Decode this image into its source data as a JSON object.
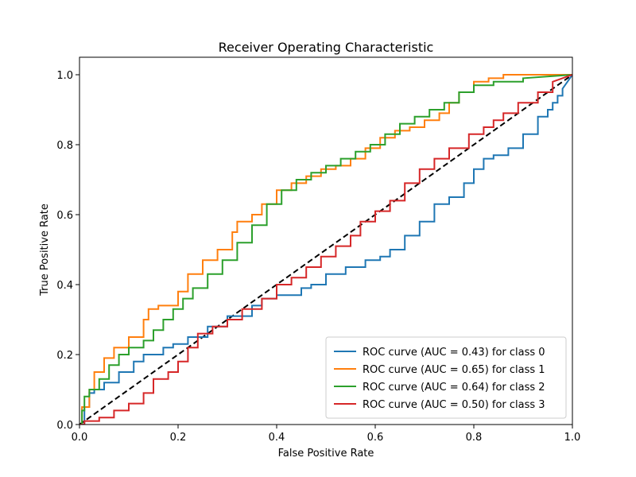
{
  "chart_data": {
    "type": "line",
    "title": "Receiver Operating Characteristic",
    "xlabel": "False Positive Rate",
    "ylabel": "True Positive Rate",
    "xlim": [
      0.0,
      1.0
    ],
    "ylim": [
      0.0,
      1.05
    ],
    "x_ticks": [
      "0.0",
      "0.2",
      "0.4",
      "0.6",
      "0.8",
      "1.0"
    ],
    "y_ticks": [
      "0.0",
      "0.2",
      "0.4",
      "0.6",
      "0.8",
      "1.0"
    ],
    "grid": false,
    "legend_position": "lower-right",
    "reference_line": {
      "style": "dashed",
      "color": "#000000",
      "x": [
        0,
        1
      ],
      "y": [
        0,
        1
      ]
    },
    "series": [
      {
        "name": "ROC curve (AUC = 0.43) for class 0",
        "color": "#1f77b4",
        "x": [
          0,
          0.01,
          0.01,
          0.02,
          0.02,
          0.03,
          0.03,
          0.05,
          0.05,
          0.08,
          0.08,
          0.11,
          0.11,
          0.13,
          0.13,
          0.17,
          0.17,
          0.19,
          0.19,
          0.22,
          0.22,
          0.26,
          0.26,
          0.3,
          0.3,
          0.35,
          0.35,
          0.37,
          0.37,
          0.4,
          0.4,
          0.45,
          0.45,
          0.47,
          0.47,
          0.5,
          0.5,
          0.54,
          0.54,
          0.58,
          0.58,
          0.61,
          0.61,
          0.63,
          0.63,
          0.66,
          0.66,
          0.69,
          0.69,
          0.72,
          0.72,
          0.75,
          0.75,
          0.78,
          0.78,
          0.8,
          0.8,
          0.82,
          0.82,
          0.84,
          0.84,
          0.87,
          0.87,
          0.9,
          0.9,
          0.93,
          0.93,
          0.95,
          0.95,
          0.96,
          0.96,
          0.97,
          0.97,
          0.98,
          0.98,
          0.99,
          1.0
        ],
        "y": [
          0,
          0,
          0.05,
          0.05,
          0.09,
          0.09,
          0.1,
          0.1,
          0.12,
          0.12,
          0.15,
          0.15,
          0.18,
          0.18,
          0.2,
          0.2,
          0.22,
          0.22,
          0.23,
          0.23,
          0.25,
          0.25,
          0.28,
          0.28,
          0.31,
          0.31,
          0.34,
          0.34,
          0.36,
          0.36,
          0.37,
          0.37,
          0.39,
          0.39,
          0.4,
          0.4,
          0.43,
          0.43,
          0.45,
          0.45,
          0.47,
          0.47,
          0.48,
          0.48,
          0.5,
          0.5,
          0.54,
          0.54,
          0.58,
          0.58,
          0.63,
          0.63,
          0.65,
          0.65,
          0.69,
          0.69,
          0.73,
          0.73,
          0.76,
          0.76,
          0.77,
          0.77,
          0.79,
          0.79,
          0.83,
          0.83,
          0.88,
          0.88,
          0.9,
          0.9,
          0.92,
          0.92,
          0.94,
          0.94,
          0.96,
          0.98,
          1.0
        ]
      },
      {
        "name": "ROC curve (AUC = 0.65) for class 1",
        "color": "#ff7f0e",
        "x": [
          0,
          0.005,
          0.005,
          0.02,
          0.02,
          0.03,
          0.03,
          0.05,
          0.05,
          0.07,
          0.07,
          0.1,
          0.1,
          0.13,
          0.13,
          0.14,
          0.14,
          0.16,
          0.16,
          0.2,
          0.2,
          0.22,
          0.22,
          0.25,
          0.25,
          0.28,
          0.28,
          0.31,
          0.31,
          0.32,
          0.32,
          0.35,
          0.35,
          0.37,
          0.37,
          0.4,
          0.4,
          0.43,
          0.43,
          0.46,
          0.46,
          0.49,
          0.49,
          0.52,
          0.52,
          0.55,
          0.55,
          0.58,
          0.58,
          0.61,
          0.61,
          0.64,
          0.64,
          0.67,
          0.67,
          0.7,
          0.7,
          0.73,
          0.73,
          0.75,
          0.75,
          0.77,
          0.77,
          0.8,
          0.8,
          0.83,
          0.83,
          0.86,
          0.86,
          0.9,
          0.9,
          1.0
        ],
        "y": [
          0,
          0,
          0.05,
          0.05,
          0.1,
          0.1,
          0.15,
          0.15,
          0.19,
          0.19,
          0.22,
          0.22,
          0.25,
          0.25,
          0.3,
          0.3,
          0.33,
          0.33,
          0.34,
          0.34,
          0.38,
          0.38,
          0.43,
          0.43,
          0.47,
          0.47,
          0.5,
          0.5,
          0.55,
          0.55,
          0.58,
          0.58,
          0.6,
          0.6,
          0.63,
          0.63,
          0.67,
          0.67,
          0.69,
          0.69,
          0.71,
          0.71,
          0.73,
          0.73,
          0.74,
          0.74,
          0.76,
          0.76,
          0.79,
          0.79,
          0.82,
          0.82,
          0.84,
          0.84,
          0.85,
          0.85,
          0.87,
          0.87,
          0.89,
          0.89,
          0.92,
          0.92,
          0.95,
          0.95,
          0.98,
          0.98,
          0.99,
          0.99,
          1.0,
          1.0,
          1.0,
          1.0
        ]
      },
      {
        "name": "ROC curve (AUC = 0.64) for class 2",
        "color": "#2ca02c",
        "x": [
          0,
          0.005,
          0.005,
          0.01,
          0.01,
          0.02,
          0.02,
          0.04,
          0.04,
          0.06,
          0.06,
          0.08,
          0.08,
          0.1,
          0.1,
          0.13,
          0.13,
          0.15,
          0.15,
          0.17,
          0.17,
          0.19,
          0.19,
          0.21,
          0.21,
          0.23,
          0.23,
          0.26,
          0.26,
          0.29,
          0.29,
          0.32,
          0.32,
          0.35,
          0.35,
          0.38,
          0.38,
          0.41,
          0.41,
          0.44,
          0.44,
          0.47,
          0.47,
          0.5,
          0.5,
          0.53,
          0.53,
          0.56,
          0.56,
          0.59,
          0.59,
          0.62,
          0.62,
          0.65,
          0.65,
          0.68,
          0.68,
          0.71,
          0.71,
          0.74,
          0.74,
          0.77,
          0.77,
          0.8,
          0.8,
          0.84,
          0.84,
          0.9,
          0.9,
          1.0
        ],
        "y": [
          0,
          0,
          0.04,
          0.04,
          0.08,
          0.08,
          0.1,
          0.1,
          0.13,
          0.13,
          0.17,
          0.17,
          0.2,
          0.2,
          0.22,
          0.22,
          0.24,
          0.24,
          0.27,
          0.27,
          0.3,
          0.3,
          0.33,
          0.33,
          0.36,
          0.36,
          0.39,
          0.39,
          0.43,
          0.43,
          0.47,
          0.47,
          0.52,
          0.52,
          0.57,
          0.57,
          0.63,
          0.63,
          0.67,
          0.67,
          0.7,
          0.7,
          0.72,
          0.72,
          0.74,
          0.74,
          0.76,
          0.76,
          0.78,
          0.78,
          0.8,
          0.8,
          0.83,
          0.83,
          0.86,
          0.86,
          0.88,
          0.88,
          0.9,
          0.9,
          0.92,
          0.92,
          0.95,
          0.95,
          0.97,
          0.97,
          0.98,
          0.98,
          0.99,
          1.0
        ]
      },
      {
        "name": "ROC curve (AUC = 0.50) for class 3",
        "color": "#d62728",
        "x": [
          0,
          0.01,
          0.01,
          0.04,
          0.04,
          0.07,
          0.07,
          0.1,
          0.1,
          0.13,
          0.13,
          0.15,
          0.15,
          0.18,
          0.18,
          0.2,
          0.2,
          0.22,
          0.22,
          0.24,
          0.24,
          0.27,
          0.27,
          0.3,
          0.3,
          0.33,
          0.33,
          0.37,
          0.37,
          0.4,
          0.4,
          0.43,
          0.43,
          0.46,
          0.46,
          0.49,
          0.49,
          0.52,
          0.52,
          0.55,
          0.55,
          0.57,
          0.57,
          0.6,
          0.6,
          0.63,
          0.63,
          0.66,
          0.66,
          0.69,
          0.69,
          0.72,
          0.72,
          0.75,
          0.75,
          0.79,
          0.79,
          0.82,
          0.82,
          0.84,
          0.84,
          0.86,
          0.86,
          0.89,
          0.89,
          0.93,
          0.93,
          0.96,
          0.96,
          1.0
        ],
        "y": [
          0,
          0,
          0.01,
          0.01,
          0.02,
          0.02,
          0.04,
          0.04,
          0.06,
          0.06,
          0.09,
          0.09,
          0.13,
          0.13,
          0.15,
          0.15,
          0.18,
          0.18,
          0.22,
          0.22,
          0.26,
          0.26,
          0.28,
          0.28,
          0.3,
          0.3,
          0.33,
          0.33,
          0.36,
          0.36,
          0.4,
          0.4,
          0.42,
          0.42,
          0.45,
          0.45,
          0.48,
          0.48,
          0.51,
          0.51,
          0.54,
          0.54,
          0.58,
          0.58,
          0.61,
          0.61,
          0.64,
          0.64,
          0.69,
          0.69,
          0.73,
          0.73,
          0.76,
          0.76,
          0.79,
          0.79,
          0.83,
          0.83,
          0.85,
          0.85,
          0.87,
          0.87,
          0.89,
          0.89,
          0.92,
          0.92,
          0.95,
          0.95,
          0.98,
          1.0
        ]
      }
    ]
  }
}
